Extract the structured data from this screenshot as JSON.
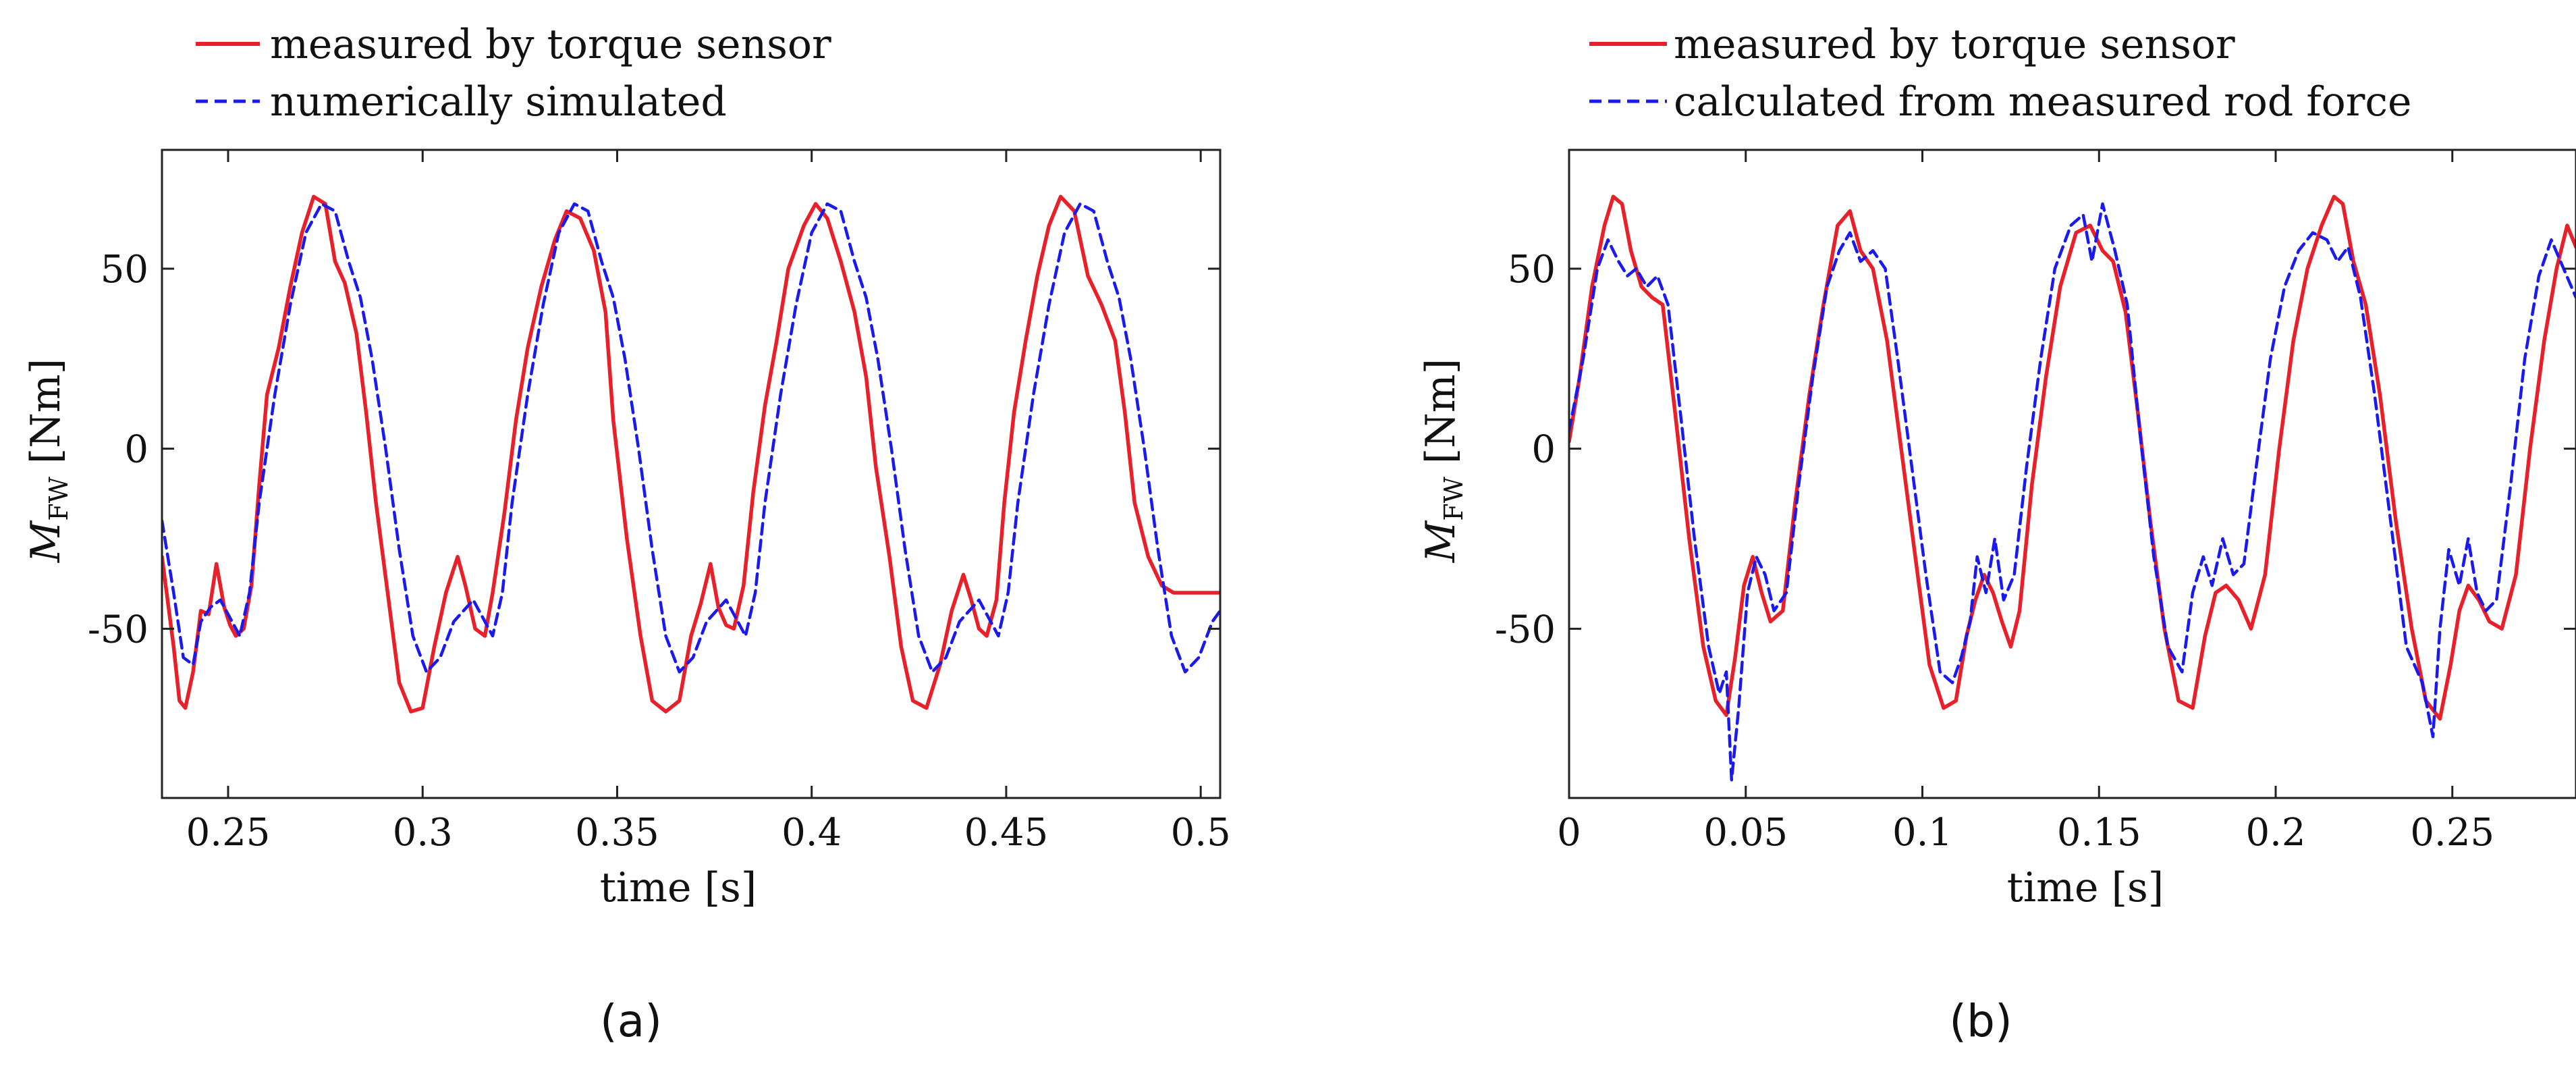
{
  "chart_data": [
    {
      "type": "line",
      "panel_label": "(a)",
      "xlabel": "time [s]",
      "ylabel_main": "M",
      "ylabel_sub": "FW",
      "ylabel_unit": " [Nm]",
      "xlim": [
        0.233,
        0.505
      ],
      "ylim": [
        -97,
        83
      ],
      "xticks": [
        0.25,
        0.3,
        0.35,
        0.4,
        0.45,
        0.5
      ],
      "xtick_labels": [
        "0.25",
        "0.3",
        "0.35",
        "0.4",
        "0.45",
        "0.5"
      ],
      "yticks": [
        50,
        0,
        -50
      ],
      "ytick_labels": [
        "50",
        "0",
        "-50"
      ],
      "legend_position": "top-left",
      "series": [
        {
          "name": "measured by torque sensor",
          "color": "#e8202a",
          "style": "solid",
          "x": [
            0.233,
            0.236,
            0.2375,
            0.239,
            0.241,
            0.243,
            0.245,
            0.247,
            0.249,
            0.2505,
            0.252,
            0.254,
            0.256,
            0.258,
            0.26,
            0.263,
            0.266,
            0.269,
            0.272,
            0.275,
            0.2775,
            0.28,
            0.283,
            0.2855,
            0.288,
            0.291,
            0.294,
            0.297,
            0.3,
            0.303,
            0.306,
            0.309,
            0.311,
            0.3135,
            0.316,
            0.318,
            0.321,
            0.324,
            0.327,
            0.3305,
            0.334,
            0.337,
            0.3405,
            0.344,
            0.347,
            0.349,
            0.3525,
            0.356,
            0.359,
            0.3625,
            0.366,
            0.369,
            0.3715,
            0.374,
            0.376,
            0.378,
            0.38,
            0.3825,
            0.385,
            0.388,
            0.391,
            0.394,
            0.398,
            0.401,
            0.404,
            0.4075,
            0.411,
            0.414,
            0.4165,
            0.42,
            0.423,
            0.426,
            0.4295,
            0.433,
            0.436,
            0.439,
            0.441,
            0.443,
            0.445,
            0.4475,
            0.4495,
            0.452,
            0.455,
            0.458,
            0.461,
            0.464,
            0.4675,
            0.471,
            0.4745,
            0.478,
            0.4805,
            0.483,
            0.4865,
            0.49,
            0.493,
            0.4965,
            0.5,
            0.503,
            0.505
          ],
          "values": [
            -30,
            -55,
            -70,
            -72,
            -62,
            -45,
            -46,
            -32,
            -44,
            -49,
            -52,
            -50,
            -38,
            -10,
            15,
            28,
            45,
            60,
            70,
            68,
            52,
            46,
            32,
            10,
            -15,
            -40,
            -65,
            -73,
            -72,
            -55,
            -40,
            -30,
            -38,
            -50,
            -52,
            -40,
            -18,
            8,
            28,
            45,
            58,
            66,
            64,
            55,
            38,
            8,
            -25,
            -52,
            -70,
            -73,
            -70,
            -52,
            -43,
            -32,
            -44,
            -49,
            -50,
            -38,
            -12,
            12,
            30,
            50,
            62,
            68,
            64,
            52,
            38,
            20,
            -5,
            -30,
            -55,
            -70,
            -72,
            -60,
            -45,
            -35,
            -42,
            -50,
            -52,
            -42,
            -15,
            10,
            30,
            48,
            62,
            70,
            66,
            48,
            40,
            30,
            10,
            -15,
            -30,
            -38,
            -40,
            -40,
            -40,
            -40,
            -40
          ]
        },
        {
          "name": "numerically simulated",
          "color": "#1a1aee",
          "style": "dashed",
          "x": [
            0.233,
            0.236,
            0.2385,
            0.241,
            0.243,
            0.2455,
            0.248,
            0.2505,
            0.253,
            0.2555,
            0.258,
            0.262,
            0.266,
            0.27,
            0.274,
            0.2775,
            0.281,
            0.284,
            0.287,
            0.2905,
            0.294,
            0.2975,
            0.301,
            0.3045,
            0.308,
            0.3105,
            0.313,
            0.3155,
            0.318,
            0.3205,
            0.323,
            0.327,
            0.331,
            0.335,
            0.339,
            0.3425,
            0.346,
            0.349,
            0.352,
            0.3555,
            0.359,
            0.3625,
            0.366,
            0.3695,
            0.373,
            0.3755,
            0.378,
            0.3805,
            0.383,
            0.3855,
            0.388,
            0.392,
            0.396,
            0.4,
            0.404,
            0.4075,
            0.411,
            0.414,
            0.417,
            0.4205,
            0.424,
            0.4275,
            0.431,
            0.4345,
            0.438,
            0.4405,
            0.443,
            0.4455,
            0.448,
            0.4505,
            0.453,
            0.457,
            0.461,
            0.465,
            0.469,
            0.4725,
            0.476,
            0.479,
            0.482,
            0.4855,
            0.489,
            0.4925,
            0.496,
            0.4995,
            0.503,
            0.505
          ],
          "values": [
            -20,
            -40,
            -58,
            -60,
            -48,
            -44,
            -42,
            -47,
            -52,
            -40,
            -15,
            15,
            40,
            60,
            68,
            66,
            52,
            42,
            25,
            0,
            -28,
            -52,
            -62,
            -58,
            -48,
            -45,
            -42,
            -47,
            -52,
            -40,
            -15,
            15,
            40,
            60,
            68,
            66,
            52,
            42,
            25,
            0,
            -28,
            -52,
            -62,
            -58,
            -48,
            -45,
            -42,
            -47,
            -52,
            -40,
            -15,
            15,
            40,
            60,
            68,
            66,
            52,
            42,
            25,
            0,
            -28,
            -52,
            -62,
            -58,
            -48,
            -45,
            -42,
            -47,
            -52,
            -40,
            -15,
            15,
            40,
            60,
            68,
            66,
            52,
            42,
            25,
            0,
            -28,
            -52,
            -62,
            -58,
            -48,
            -45
          ]
        }
      ]
    },
    {
      "type": "line",
      "panel_label": "(b)",
      "xlabel": "time [s]",
      "ylabel_main": "M",
      "ylabel_sub": "FW",
      "ylabel_unit": " [Nm]",
      "xlim": [
        0.0,
        0.285
      ],
      "ylim": [
        -97,
        83
      ],
      "xticks": [
        0,
        0.05,
        0.1,
        0.15,
        0.2,
        0.25
      ],
      "xtick_labels": [
        "0",
        "0.05",
        "0.1",
        "0.15",
        "0.2",
        "0.25"
      ],
      "yticks": [
        50,
        0,
        -50
      ],
      "ytick_labels": [
        "50",
        "0",
        "-50"
      ],
      "legend_position": "top-left",
      "series": [
        {
          "name": "measured by torque sensor",
          "color": "#e8202a",
          "style": "solid",
          "x": [
            0.0,
            0.003,
            0.0065,
            0.01,
            0.0125,
            0.015,
            0.0175,
            0.0205,
            0.0235,
            0.0265,
            0.03,
            0.034,
            0.038,
            0.0415,
            0.0445,
            0.047,
            0.0495,
            0.052,
            0.0545,
            0.057,
            0.0605,
            0.064,
            0.068,
            0.072,
            0.076,
            0.0795,
            0.0825,
            0.086,
            0.09,
            0.094,
            0.098,
            0.102,
            0.106,
            0.1095,
            0.1125,
            0.115,
            0.1175,
            0.12,
            0.1225,
            0.125,
            0.1275,
            0.131,
            0.135,
            0.139,
            0.1435,
            0.1475,
            0.151,
            0.154,
            0.1575,
            0.161,
            0.1645,
            0.1685,
            0.1725,
            0.1765,
            0.18,
            0.183,
            0.186,
            0.1895,
            0.193,
            0.197,
            0.201,
            0.205,
            0.209,
            0.213,
            0.2165,
            0.219,
            0.222,
            0.2255,
            0.2295,
            0.234,
            0.2385,
            0.2425,
            0.2465,
            0.2495,
            0.252,
            0.2545,
            0.2575,
            0.2605,
            0.264,
            0.268,
            0.272,
            0.276,
            0.2795,
            0.2825,
            0.285
          ],
          "values": [
            2,
            20,
            45,
            62,
            70,
            68,
            55,
            45,
            42,
            40,
            10,
            -25,
            -55,
            -70,
            -74,
            -58,
            -38,
            -30,
            -40,
            -48,
            -45,
            -15,
            15,
            40,
            62,
            66,
            55,
            50,
            30,
            0,
            -30,
            -60,
            -72,
            -70,
            -52,
            -42,
            -35,
            -40,
            -48,
            -55,
            -45,
            -10,
            20,
            45,
            60,
            62,
            55,
            52,
            38,
            10,
            -20,
            -50,
            -70,
            -72,
            -52,
            -40,
            -38,
            -42,
            -50,
            -35,
            0,
            30,
            50,
            62,
            70,
            68,
            52,
            40,
            15,
            -20,
            -50,
            -70,
            -75,
            -60,
            -45,
            -38,
            -42,
            -48,
            -50,
            -35,
            0,
            30,
            50,
            62,
            56
          ]
        },
        {
          "name": "calculated from measured rod force",
          "color": "#1a1aee",
          "style": "dashed",
          "x": [
            0.0,
            0.004,
            0.008,
            0.011,
            0.014,
            0.0165,
            0.019,
            0.022,
            0.025,
            0.028,
            0.0315,
            0.0355,
            0.0395,
            0.0425,
            0.0445,
            0.046,
            0.048,
            0.0505,
            0.053,
            0.0555,
            0.058,
            0.0615,
            0.065,
            0.069,
            0.073,
            0.0765,
            0.0795,
            0.0825,
            0.086,
            0.0895,
            0.093,
            0.097,
            0.101,
            0.105,
            0.1085,
            0.111,
            0.1135,
            0.1155,
            0.118,
            0.1205,
            0.123,
            0.126,
            0.1295,
            0.1335,
            0.1375,
            0.142,
            0.1455,
            0.148,
            0.151,
            0.1545,
            0.158,
            0.1615,
            0.1655,
            0.1695,
            0.1735,
            0.1765,
            0.1795,
            0.182,
            0.185,
            0.188,
            0.191,
            0.1945,
            0.1985,
            0.2025,
            0.2065,
            0.2105,
            0.2145,
            0.2175,
            0.2205,
            0.224,
            0.228,
            0.2325,
            0.237,
            0.2415,
            0.2445,
            0.2465,
            0.249,
            0.252,
            0.2545,
            0.257,
            0.2595,
            0.2625,
            0.2665,
            0.2705,
            0.2745,
            0.278,
            0.2815,
            0.285
          ],
          "values": [
            5,
            25,
            50,
            58,
            52,
            48,
            50,
            45,
            48,
            40,
            10,
            -25,
            -55,
            -68,
            -62,
            -92,
            -72,
            -40,
            -30,
            -35,
            -45,
            -40,
            -10,
            20,
            45,
            55,
            60,
            52,
            55,
            50,
            25,
            -5,
            -35,
            -62,
            -65,
            -58,
            -48,
            -30,
            -40,
            -25,
            -42,
            -35,
            -5,
            25,
            50,
            62,
            65,
            52,
            68,
            55,
            40,
            5,
            -30,
            -55,
            -62,
            -40,
            -30,
            -38,
            -25,
            -35,
            -32,
            -5,
            25,
            45,
            55,
            60,
            58,
            52,
            56,
            42,
            15,
            -20,
            -55,
            -65,
            -80,
            -50,
            -28,
            -38,
            -25,
            -40,
            -45,
            -42,
            -10,
            25,
            48,
            58,
            50,
            42
          ]
        }
      ]
    }
  ]
}
